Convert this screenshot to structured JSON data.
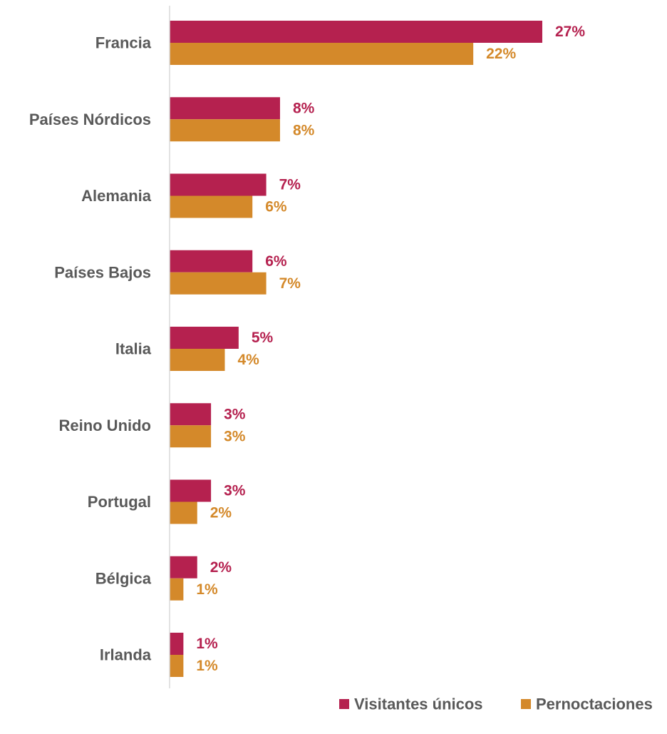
{
  "chart_data": {
    "type": "bar",
    "orientation": "horizontal",
    "categories": [
      "Francia",
      "Países Nórdicos",
      "Alemania",
      "Países Bajos",
      "Italia",
      "Reino Unido",
      "Portugal",
      "Bélgica",
      "Irlanda"
    ],
    "series": [
      {
        "name": "Visitantes únicos",
        "color": "#B5214F",
        "values": [
          27,
          8,
          7,
          6,
          5,
          3,
          3,
          2,
          1
        ],
        "labels": [
          "27%",
          "8%",
          "7%",
          "6%",
          "5%",
          "3%",
          "3%",
          "2%",
          "1%"
        ]
      },
      {
        "name": "Pernoctaciones",
        "color": "#D4892A",
        "values": [
          22,
          8,
          6,
          7,
          4,
          3,
          2,
          1,
          1
        ],
        "labels": [
          "22%",
          "8%",
          "6%",
          "7%",
          "4%",
          "3%",
          "2%",
          "1%",
          "1%"
        ]
      }
    ],
    "xlim": [
      0,
      30
    ],
    "grid": false,
    "legend_position": "bottom-right",
    "axis_color": "#D9D9D9",
    "label_color": "#595959"
  }
}
